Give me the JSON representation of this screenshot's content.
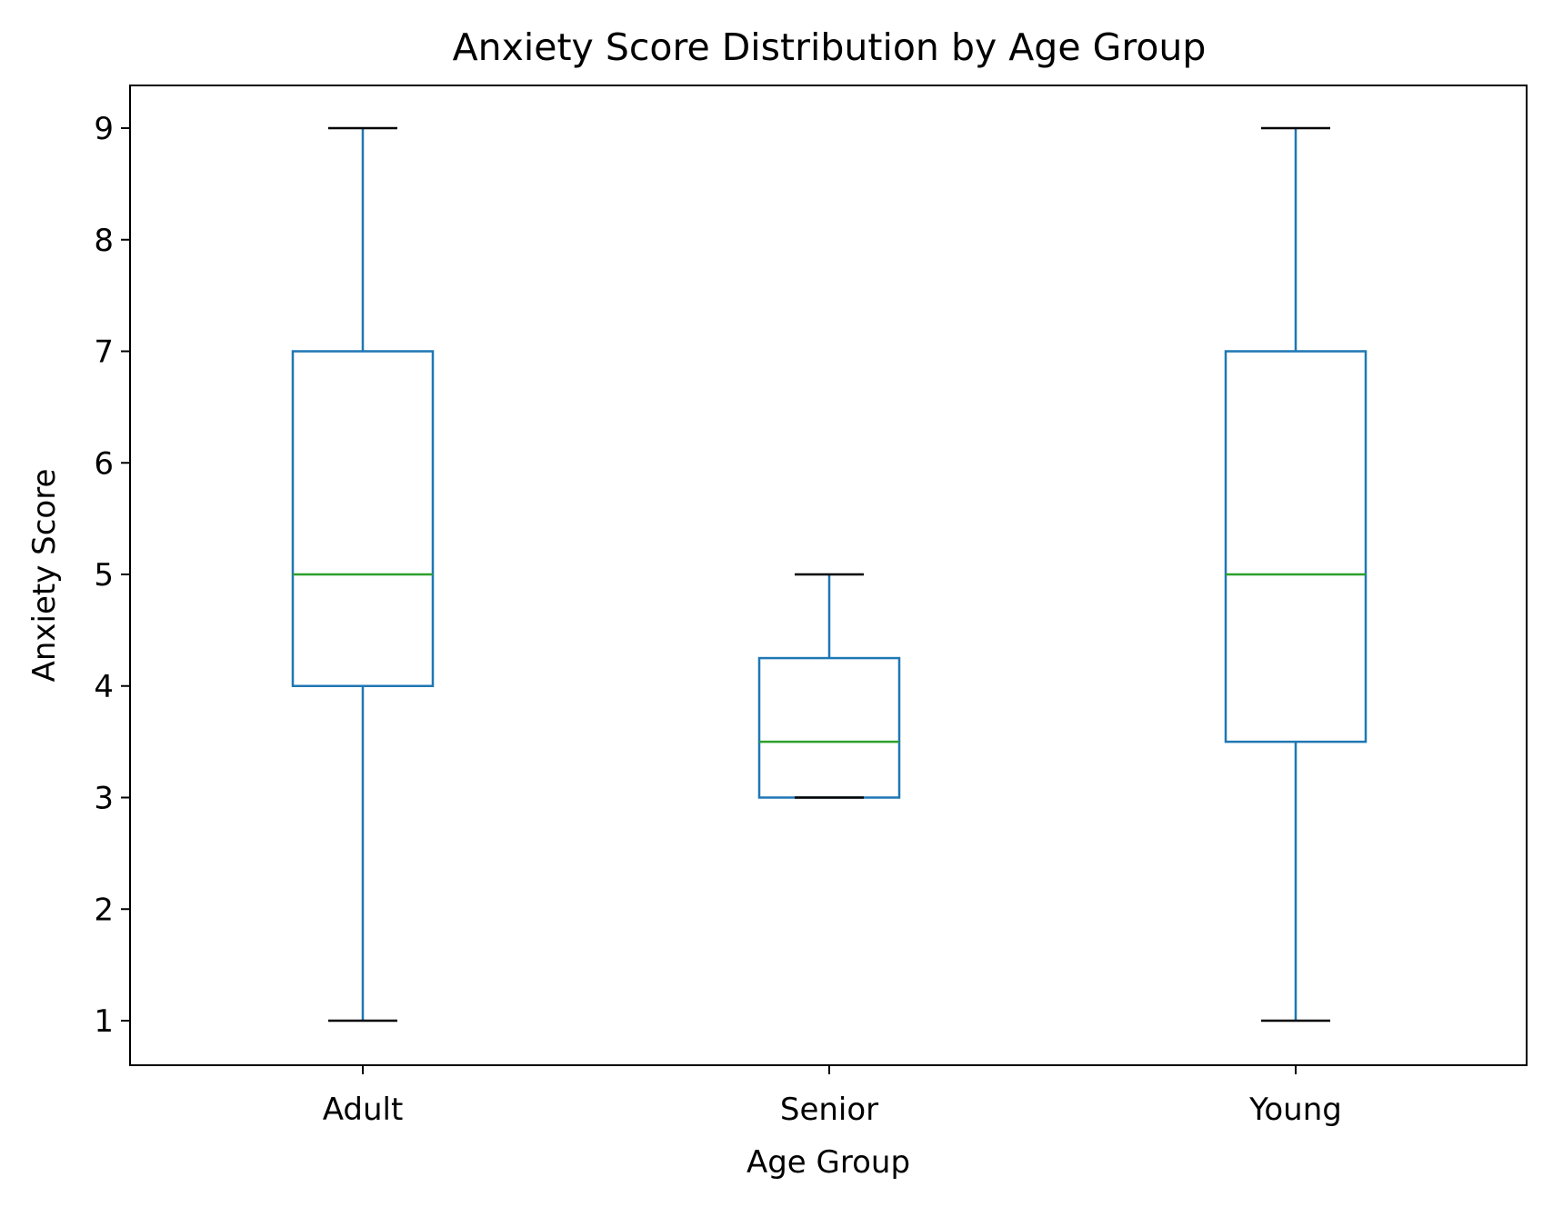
{
  "chart_data": {
    "type": "box",
    "title": "Anxiety Score Distribution by Age Group",
    "xlabel": "Age Group",
    "ylabel": "Anxiety Score",
    "ylim": [
      0.6,
      9.4
    ],
    "yticks": [
      1,
      2,
      3,
      4,
      5,
      6,
      7,
      8,
      9
    ],
    "grid": false,
    "categories": [
      "Adult",
      "Senior",
      "Young"
    ],
    "boxes": [
      {
        "category": "Adult",
        "whisker_low": 1,
        "q1": 4,
        "median": 5,
        "q3": 7,
        "whisker_high": 9
      },
      {
        "category": "Senior",
        "whisker_low": 3,
        "q1": 3,
        "median": 3.5,
        "q3": 4.25,
        "whisker_high": 5
      },
      {
        "category": "Young",
        "whisker_low": 1,
        "q1": 3.5,
        "median": 5,
        "q3": 7,
        "whisker_high": 9
      }
    ],
    "colors": {
      "box": "#1f77b4",
      "median": "#2ca02c",
      "cap": "#000000"
    }
  }
}
